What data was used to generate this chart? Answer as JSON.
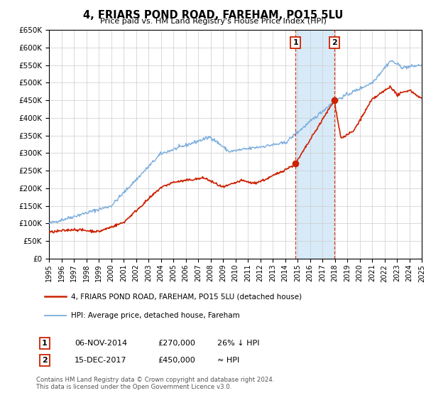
{
  "title": "4, FRIARS POND ROAD, FAREHAM, PO15 5LU",
  "subtitle": "Price paid vs. HM Land Registry's House Price Index (HPI)",
  "legend_line1": "4, FRIARS POND ROAD, FAREHAM, PO15 5LU (detached house)",
  "legend_line2": "HPI: Average price, detached house, Fareham",
  "annotation1_label": "1",
  "annotation1_date": "06-NOV-2014",
  "annotation1_price": "£270,000",
  "annotation1_hpi": "26% ↓ HPI",
  "annotation2_label": "2",
  "annotation2_date": "15-DEC-2017",
  "annotation2_price": "£450,000",
  "annotation2_hpi": "≈ HPI",
  "footer1": "Contains HM Land Registry data © Crown copyright and database right 2024.",
  "footer2": "This data is licensed under the Open Government Licence v3.0.",
  "sale1_x": 2014.85,
  "sale1_y": 270000,
  "sale2_x": 2017.96,
  "sale2_y": 450000,
  "vline1_x": 2014.85,
  "vline2_x": 2017.96,
  "shade_xmin": 2014.85,
  "shade_xmax": 2017.96,
  "hpi_color": "#7aadde",
  "price_color": "#cc2200",
  "dot_color": "#cc2200",
  "shade_color": "#d8eaf8",
  "vline_color": "#cc2200",
  "box_edge_color": "#cc2200",
  "ylim_min": 0,
  "ylim_max": 650000,
  "xlim_min": 1995,
  "xlim_max": 2025,
  "yticks": [
    0,
    50000,
    100000,
    150000,
    200000,
    250000,
    300000,
    350000,
    400000,
    450000,
    500000,
    550000,
    600000,
    650000
  ],
  "xticks": [
    1995,
    1996,
    1997,
    1998,
    1999,
    2000,
    2001,
    2002,
    2003,
    2004,
    2005,
    2006,
    2007,
    2008,
    2009,
    2010,
    2011,
    2012,
    2013,
    2014,
    2015,
    2016,
    2017,
    2018,
    2019,
    2020,
    2021,
    2022,
    2023,
    2024,
    2025
  ]
}
